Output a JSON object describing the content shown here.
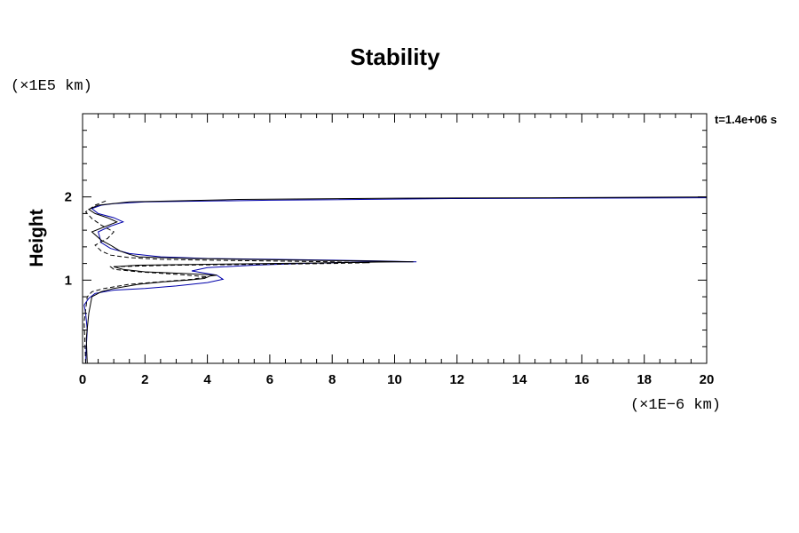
{
  "chart_data": {
    "type": "line",
    "title": "Stability",
    "ylabel": "Height",
    "xlabel": "",
    "x_unit_label": "(×1E−6 km)",
    "y_unit_label": "(×1E5 km)",
    "time_label": "t=1.4e+06 s",
    "xlim": [
      0,
      20
    ],
    "ylim": [
      0,
      3
    ],
    "x_ticks": [
      "0",
      "2",
      "4",
      "6",
      "8",
      "10",
      "12",
      "14",
      "16",
      "18",
      "20"
    ],
    "y_ticks": [
      "1",
      "2"
    ],
    "series": [
      {
        "style": "solid",
        "color": "#0000aa",
        "x": [
          0.1,
          0.12,
          0.15,
          0.1,
          0.05,
          0.2,
          0.4,
          1.0,
          2.0,
          3.0,
          4.0,
          4.5,
          4.3,
          3.5,
          4.0,
          5.5,
          7.0,
          8.0,
          9.0,
          10.7,
          9.5,
          8.0,
          6.0,
          4.0,
          2.5,
          1.5,
          0.9,
          0.6,
          0.5,
          0.9,
          1.3,
          1.0,
          0.5,
          0.3,
          0.6,
          1.0,
          2.0,
          6.0,
          12.0,
          20.0
        ],
        "y": [
          0.0,
          0.2,
          0.4,
          0.6,
          0.7,
          0.78,
          0.84,
          0.88,
          0.9,
          0.93,
          0.97,
          1.01,
          1.06,
          1.11,
          1.15,
          1.18,
          1.2,
          1.21,
          1.22,
          1.22,
          1.23,
          1.24,
          1.25,
          1.26,
          1.28,
          1.32,
          1.38,
          1.45,
          1.58,
          1.65,
          1.7,
          1.75,
          1.8,
          1.86,
          1.9,
          1.92,
          1.94,
          1.96,
          1.98,
          1.99
        ]
      },
      {
        "style": "solid",
        "color": "#000000",
        "x": [
          0.15,
          0.12,
          0.2,
          0.3,
          0.6,
          1.0,
          1.8,
          2.6,
          3.4,
          3.9,
          4.1,
          4.3,
          3.2,
          2.0,
          1.3,
          1.0,
          1.8,
          4.0,
          6.0,
          8.0,
          10.0,
          10.6,
          9.0,
          7.0,
          5.0,
          3.5,
          2.5,
          1.8,
          1.5,
          1.2,
          0.9,
          0.6,
          0.3,
          0.7,
          1.1,
          0.8,
          0.4,
          0.2,
          0.5,
          1.5,
          5.0,
          10.0,
          15.0,
          20.0
        ],
        "y": [
          0.0,
          0.3,
          0.6,
          0.8,
          0.86,
          0.9,
          0.95,
          0.98,
          1.0,
          1.02,
          1.05,
          1.06,
          1.08,
          1.1,
          1.13,
          1.16,
          1.18,
          1.19,
          1.2,
          1.21,
          1.22,
          1.22,
          1.23,
          1.24,
          1.25,
          1.26,
          1.27,
          1.28,
          1.31,
          1.35,
          1.42,
          1.48,
          1.58,
          1.64,
          1.7,
          1.75,
          1.8,
          1.85,
          1.9,
          1.94,
          1.97,
          1.985,
          1.99,
          2.0
        ]
      },
      {
        "style": "dashed",
        "color": "#000000",
        "x": [
          0.1,
          0.05,
          0.15,
          0.3,
          0.7,
          1.5,
          2.5,
          3.5,
          4.0,
          3.0,
          1.8,
          1.0,
          0.9,
          3.0,
          6.0,
          8.0,
          9.2,
          8.0,
          6.0,
          4.0,
          2.5,
          1.5,
          0.9,
          0.6,
          0.4,
          0.8,
          1.0,
          0.6,
          0.3,
          0.1,
          0.4,
          0.8
        ],
        "y": [
          0.0,
          0.5,
          0.8,
          0.86,
          0.9,
          0.95,
          0.98,
          1.01,
          1.04,
          1.07,
          1.1,
          1.13,
          1.16,
          1.18,
          1.19,
          1.2,
          1.21,
          1.22,
          1.23,
          1.24,
          1.25,
          1.27,
          1.3,
          1.35,
          1.42,
          1.5,
          1.58,
          1.66,
          1.74,
          1.82,
          1.9,
          1.96
        ]
      }
    ]
  }
}
